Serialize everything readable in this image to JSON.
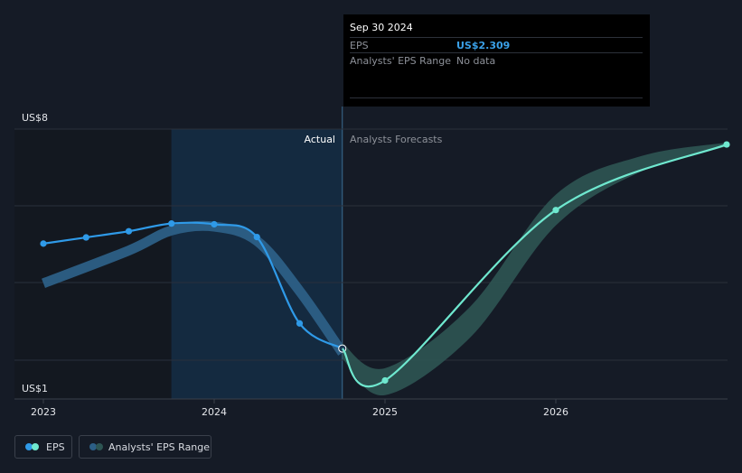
{
  "tooltip": {
    "date": "Sep 30 2024",
    "rows": [
      {
        "label": "EPS",
        "value": "US$2.309"
      },
      {
        "label": "Analysts' EPS Range",
        "value": "No data"
      }
    ]
  },
  "colors": {
    "background": "#151b26",
    "eps_actual": "#2f9ae8",
    "eps_forecast": "#6fe8cf",
    "range_band_past": "#2c5f86",
    "range_band_future": "#2d5553",
    "past_highlight": "#142a40"
  },
  "legend": [
    {
      "label": "EPS",
      "icon": "eps-dot-icon"
    },
    {
      "label": "Analysts' EPS Range",
      "icon": "range-dot-icon"
    }
  ],
  "chart_data": {
    "type": "line",
    "y_axis_labels": [
      "US$8",
      "US$1"
    ],
    "ylim": [
      1,
      8
    ],
    "x_ticks": [
      {
        "label": "2023",
        "value": 2023.0
      },
      {
        "label": "2024",
        "value": 2024.0
      },
      {
        "label": "2025",
        "value": 2025.0
      },
      {
        "label": "2026",
        "value": 2026.0
      }
    ],
    "xlim": [
      2022.82,
      2027.0
    ],
    "grid": true,
    "divider_x": 2024.75,
    "highlight_start_x": 2023.75,
    "section_labels": {
      "actual": "Actual",
      "forecast": "Analysts Forecasts"
    },
    "series": [
      {
        "name": "EPS",
        "kind": "actual",
        "points": [
          {
            "x": 2023.0,
            "y": 5.03
          },
          {
            "x": 2023.25,
            "y": 5.19
          },
          {
            "x": 2023.5,
            "y": 5.35
          },
          {
            "x": 2023.75,
            "y": 5.55
          },
          {
            "x": 2024.0,
            "y": 5.53
          },
          {
            "x": 2024.25,
            "y": 5.2
          },
          {
            "x": 2024.5,
            "y": 2.96
          },
          {
            "x": 2024.75,
            "y": 2.309
          }
        ]
      },
      {
        "name": "EPS",
        "kind": "forecast",
        "points": [
          {
            "x": 2024.75,
            "y": 2.309
          },
          {
            "x": 2025.0,
            "y": 1.48
          },
          {
            "x": 2026.0,
            "y": 5.9
          },
          {
            "x": 2027.0,
            "y": 7.6
          }
        ]
      },
      {
        "name": "Analysts' EPS Range",
        "kind": "range-past",
        "points": [
          {
            "x": 2023.0,
            "y": 4.0
          },
          {
            "x": 2023.5,
            "y": 4.85
          },
          {
            "x": 2023.75,
            "y": 5.37
          },
          {
            "x": 2024.0,
            "y": 5.47
          },
          {
            "x": 2024.25,
            "y": 5.1
          },
          {
            "x": 2024.5,
            "y": 3.8
          },
          {
            "x": 2024.75,
            "y": 2.2
          }
        ],
        "width": 0.42
      },
      {
        "name": "Analysts' EPS Range",
        "kind": "range-future",
        "upper": [
          {
            "x": 2024.75,
            "y": 2.45
          },
          {
            "x": 2025.0,
            "y": 1.8
          },
          {
            "x": 2025.5,
            "y": 3.4
          },
          {
            "x": 2026.0,
            "y": 6.3
          },
          {
            "x": 2026.5,
            "y": 7.3
          },
          {
            "x": 2027.0,
            "y": 7.65
          }
        ],
        "lower": [
          {
            "x": 2027.0,
            "y": 7.55
          },
          {
            "x": 2026.5,
            "y": 6.9
          },
          {
            "x": 2026.0,
            "y": 5.5
          },
          {
            "x": 2025.5,
            "y": 2.6
          },
          {
            "x": 2025.0,
            "y": 1.1
          },
          {
            "x": 2024.75,
            "y": 2.05
          }
        ]
      }
    ]
  }
}
